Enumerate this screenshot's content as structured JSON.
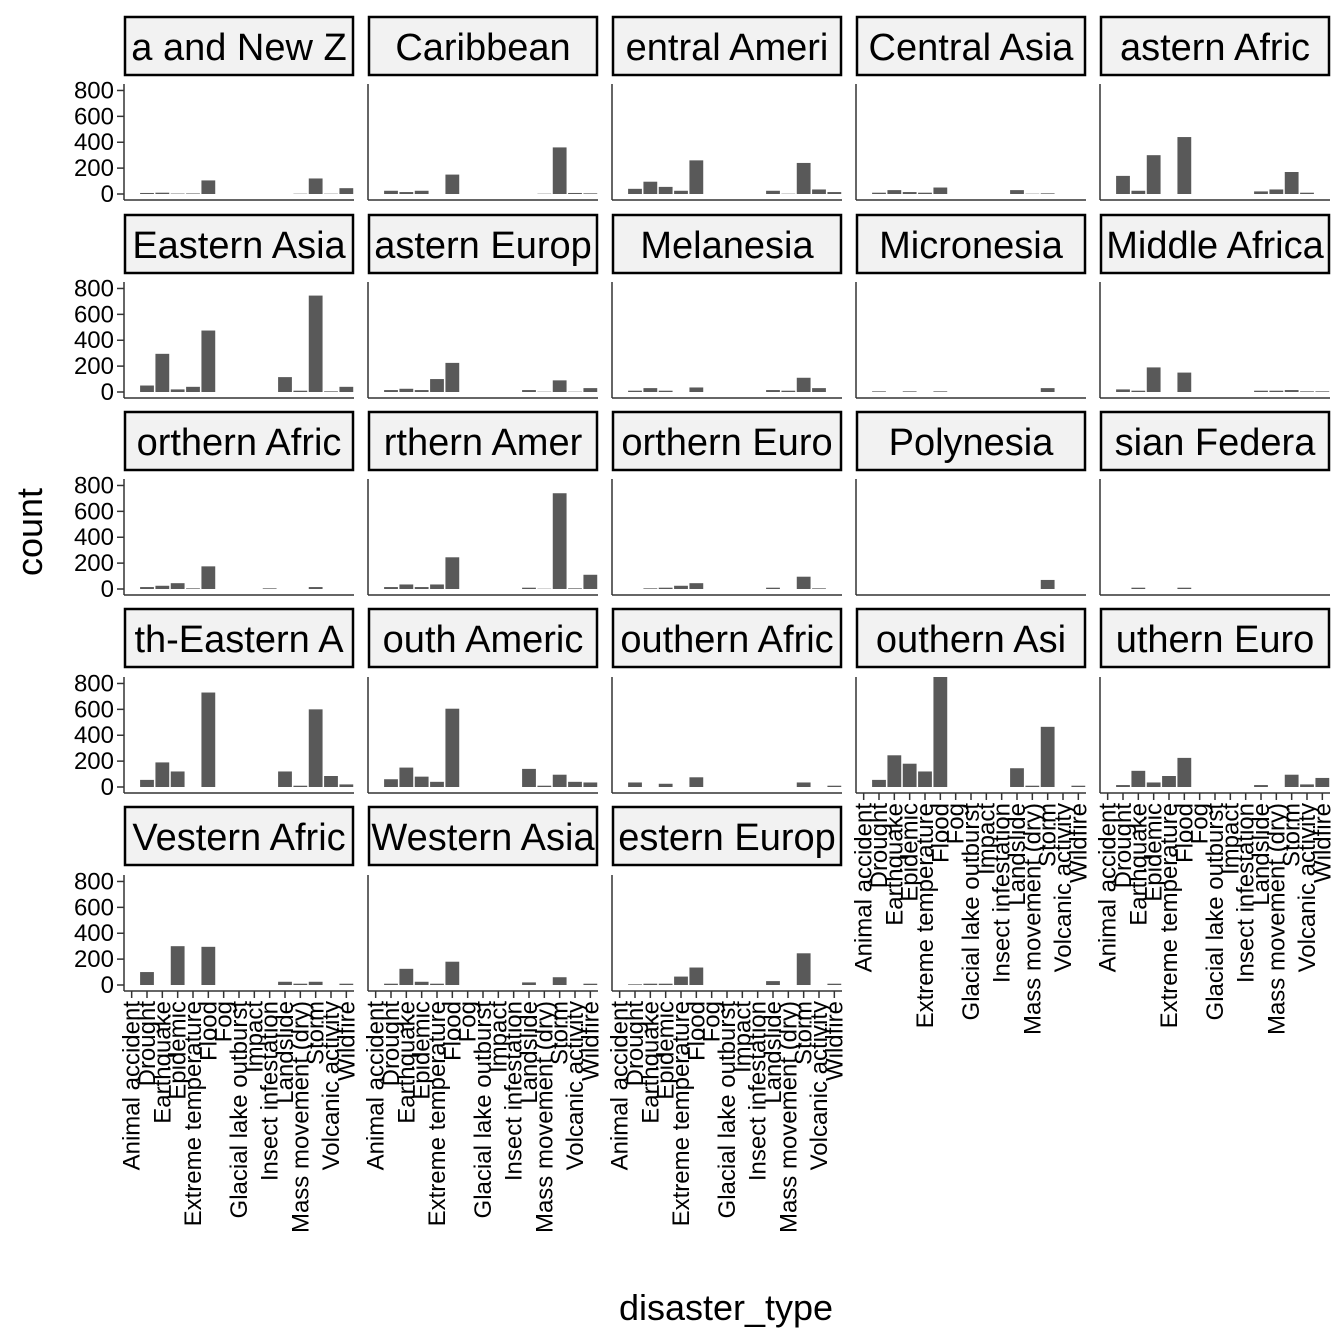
{
  "chart_data": {
    "type": "bar",
    "facet_layout": "wrap",
    "xlabel": "disaster_type",
    "ylabel": "count",
    "ylim": [
      0,
      850
    ],
    "yticks": [
      0,
      200,
      400,
      600,
      800
    ],
    "grid": false,
    "legend": "none",
    "colors": {
      "bar": "#595959",
      "strip_fill": "#f2f2f2",
      "strip_border": "#000000",
      "axis": "#333333"
    },
    "categories": [
      "Animal accident",
      "Drought",
      "Earthquake",
      "Epidemic",
      "Extreme temperature",
      "Flood",
      "Fog",
      "Glacial lake outburst",
      "Impact",
      "Insect infestation",
      "Landslide",
      "Mass movement (dry)",
      "Storm",
      "Volcanic activity",
      "Wildfire"
    ],
    "panels": [
      {
        "label": "a and New Z",
        "values": [
          0,
          8,
          10,
          3,
          4,
          105,
          0,
          0,
          0,
          0,
          0,
          2,
          120,
          2,
          45
        ]
      },
      {
        "label": "Caribbean",
        "values": [
          0,
          25,
          15,
          25,
          0,
          150,
          0,
          0,
          0,
          0,
          0,
          2,
          360,
          8,
          5
        ]
      },
      {
        "label": "entral Ameri",
        "values": [
          0,
          40,
          95,
          55,
          25,
          260,
          0,
          0,
          0,
          0,
          25,
          2,
          240,
          35,
          15
        ]
      },
      {
        "label": "Central Asia",
        "values": [
          0,
          10,
          30,
          15,
          10,
          50,
          0,
          0,
          0,
          0,
          30,
          2,
          5,
          0,
          0
        ]
      },
      {
        "label": "astern Afric",
        "values": [
          0,
          140,
          25,
          300,
          0,
          440,
          0,
          0,
          0,
          0,
          20,
          35,
          170,
          10,
          0
        ]
      },
      {
        "label": "Eastern Asia",
        "values": [
          0,
          50,
          295,
          20,
          40,
          475,
          0,
          0,
          0,
          0,
          115,
          10,
          745,
          5,
          40
        ]
      },
      {
        "label": "astern Europ",
        "values": [
          0,
          15,
          25,
          15,
          100,
          225,
          0,
          0,
          0,
          0,
          15,
          2,
          90,
          2,
          30
        ]
      },
      {
        "label": "Melanesia",
        "values": [
          0,
          10,
          30,
          10,
          0,
          35,
          0,
          0,
          0,
          0,
          15,
          10,
          110,
          30,
          0
        ]
      },
      {
        "label": "Micronesia",
        "values": [
          0,
          5,
          0,
          5,
          0,
          5,
          0,
          0,
          0,
          0,
          0,
          0,
          30,
          0,
          0
        ]
      },
      {
        "label": "Middle Africa",
        "values": [
          0,
          20,
          10,
          190,
          0,
          150,
          0,
          0,
          0,
          0,
          10,
          10,
          15,
          5,
          5
        ]
      },
      {
        "label": "orthern Afric",
        "values": [
          0,
          15,
          25,
          45,
          5,
          175,
          0,
          0,
          0,
          5,
          0,
          0,
          15,
          0,
          0
        ]
      },
      {
        "label": "rthern Amer",
        "values": [
          0,
          15,
          35,
          15,
          35,
          245,
          0,
          0,
          0,
          0,
          10,
          2,
          740,
          5,
          110
        ]
      },
      {
        "label": "orthern Euro",
        "values": [
          0,
          0,
          5,
          10,
          25,
          45,
          0,
          0,
          0,
          0,
          10,
          0,
          95,
          5,
          0
        ]
      },
      {
        "label": "Polynesia",
        "values": [
          0,
          0,
          0,
          0,
          0,
          0,
          0,
          0,
          0,
          0,
          0,
          0,
          70,
          0,
          0
        ]
      },
      {
        "label": "sian Federa",
        "values": [
          0,
          0,
          10,
          0,
          0,
          10,
          0,
          0,
          0,
          0,
          0,
          0,
          0,
          0,
          0
        ]
      },
      {
        "label": "th-Eastern A",
        "values": [
          0,
          55,
          190,
          120,
          0,
          730,
          0,
          0,
          0,
          0,
          120,
          10,
          600,
          85,
          20
        ]
      },
      {
        "label": "outh Americ",
        "values": [
          0,
          60,
          150,
          80,
          40,
          605,
          0,
          0,
          0,
          0,
          140,
          10,
          95,
          40,
          35
        ]
      },
      {
        "label": "outhern Afric",
        "values": [
          0,
          35,
          0,
          25,
          0,
          75,
          0,
          0,
          0,
          0,
          0,
          0,
          35,
          0,
          10
        ]
      },
      {
        "label": "outhern Asi",
        "values": [
          0,
          55,
          245,
          180,
          120,
          850,
          0,
          0,
          0,
          0,
          145,
          10,
          465,
          0,
          10
        ]
      },
      {
        "label": "uthern Euro",
        "values": [
          0,
          15,
          125,
          35,
          85,
          225,
          0,
          0,
          0,
          0,
          15,
          0,
          95,
          20,
          70
        ]
      },
      {
        "label": "Vestern Afric",
        "values": [
          0,
          100,
          0,
          300,
          0,
          295,
          0,
          0,
          0,
          0,
          25,
          10,
          25,
          0,
          10
        ]
      },
      {
        "label": "Western Asia",
        "values": [
          0,
          10,
          125,
          25,
          10,
          180,
          0,
          0,
          0,
          0,
          20,
          0,
          60,
          0,
          10
        ]
      },
      {
        "label": "estern Europ",
        "values": [
          0,
          5,
          10,
          10,
          65,
          135,
          0,
          0,
          0,
          0,
          30,
          0,
          245,
          0,
          10
        ]
      }
    ]
  }
}
